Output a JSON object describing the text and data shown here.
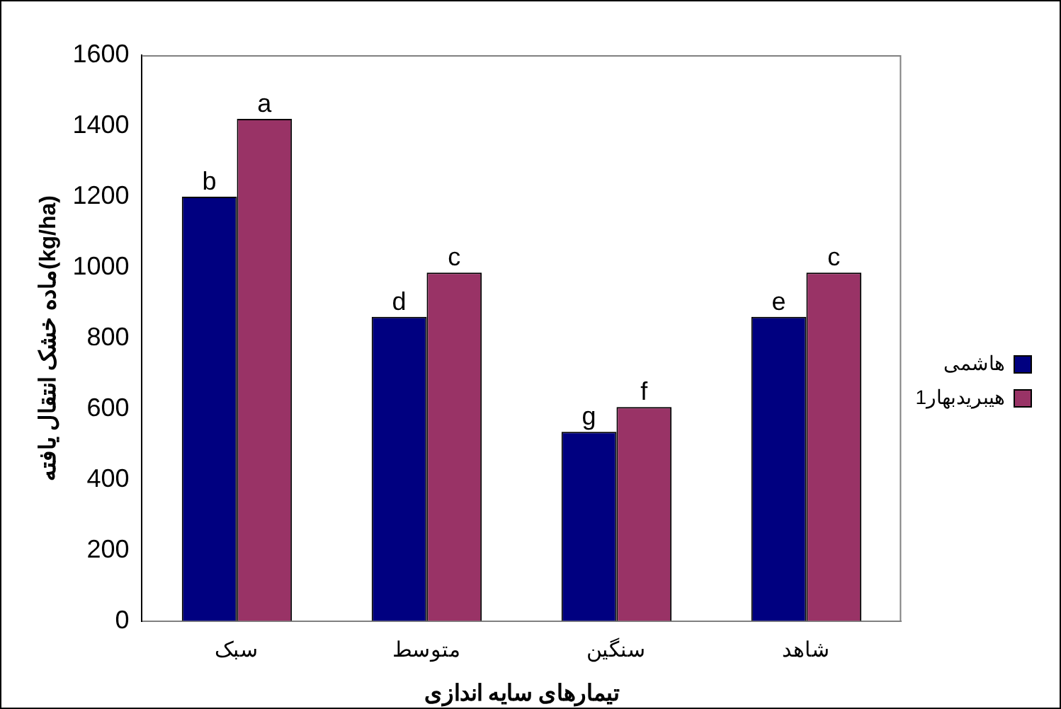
{
  "chart_data": {
    "type": "bar",
    "xlabel": "تیمارهای سایه اندازی",
    "ylabel": "ماده خشک انتقال یافته(kg/ha)",
    "categories": [
      "سبک",
      "متوسط",
      "سنگین",
      "شاهد"
    ],
    "series": [
      {
        "name": "هاشمی",
        "color": "#000080",
        "values": [
          1200,
          860,
          535,
          860
        ]
      },
      {
        "name": "هیبریدبهار1",
        "color": "#993366",
        "values": [
          1420,
          985,
          605,
          985
        ]
      }
    ],
    "ylim": [
      0,
      1600
    ],
    "yticks": [
      0,
      200,
      400,
      600,
      800,
      1000,
      1200,
      1400,
      1600
    ],
    "grid": false,
    "legend": "right",
    "annotations": [
      {
        "text": "b",
        "x": "سبک",
        "y": 1200
      },
      {
        "text": "a",
        "x": "سبک",
        "y": 1420
      },
      {
        "text": "d",
        "x": "متوسط",
        "y": 860
      },
      {
        "text": "c",
        "x": "متوسط",
        "y": 985
      },
      {
        "text": "g",
        "x": "سنگین",
        "y": 535
      },
      {
        "text": "f",
        "x": "سنگین",
        "y": 605
      },
      {
        "text": "e",
        "x": "شاهد",
        "y": 860
      },
      {
        "text": "c",
        "x": "شاهد",
        "y": 985
      }
    ]
  }
}
